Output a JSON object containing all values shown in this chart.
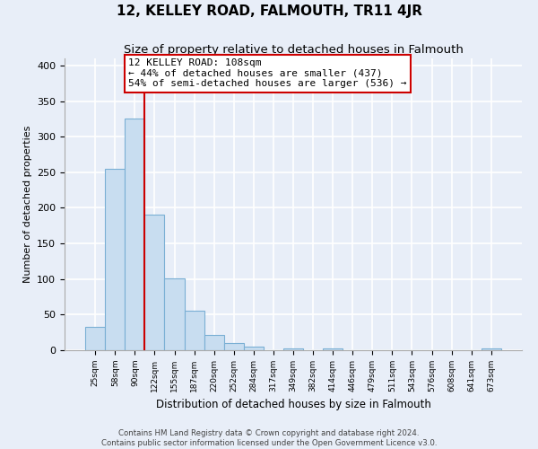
{
  "title": "12, KELLEY ROAD, FALMOUTH, TR11 4JR",
  "subtitle": "Size of property relative to detached houses in Falmouth",
  "xlabel": "Distribution of detached houses by size in Falmouth",
  "ylabel": "Number of detached properties",
  "bar_labels": [
    "25sqm",
    "58sqm",
    "90sqm",
    "122sqm",
    "155sqm",
    "187sqm",
    "220sqm",
    "252sqm",
    "284sqm",
    "317sqm",
    "349sqm",
    "382sqm",
    "414sqm",
    "446sqm",
    "479sqm",
    "511sqm",
    "543sqm",
    "576sqm",
    "608sqm",
    "641sqm",
    "673sqm"
  ],
  "bar_values": [
    33,
    255,
    325,
    190,
    101,
    55,
    21,
    10,
    5,
    0,
    2,
    0,
    3,
    0,
    0,
    0,
    0,
    0,
    0,
    0,
    3
  ],
  "bar_color": "#c8ddf0",
  "bar_edge_color": "#7aafd4",
  "vline_x": 2.5,
  "vline_color": "#cc0000",
  "annotation_title": "12 KELLEY ROAD: 108sqm",
  "annotation_line1": "← 44% of detached houses are smaller (437)",
  "annotation_line2": "54% of semi-detached houses are larger (536) →",
  "ylim": [
    0,
    410
  ],
  "yticks": [
    0,
    50,
    100,
    150,
    200,
    250,
    300,
    350,
    400
  ],
  "footer1": "Contains HM Land Registry data © Crown copyright and database right 2024.",
  "footer2": "Contains public sector information licensed under the Open Government Licence v3.0.",
  "bg_color": "#e8eef8",
  "grid_color": "#ffffff",
  "title_fontsize": 11,
  "subtitle_fontsize": 9.5
}
